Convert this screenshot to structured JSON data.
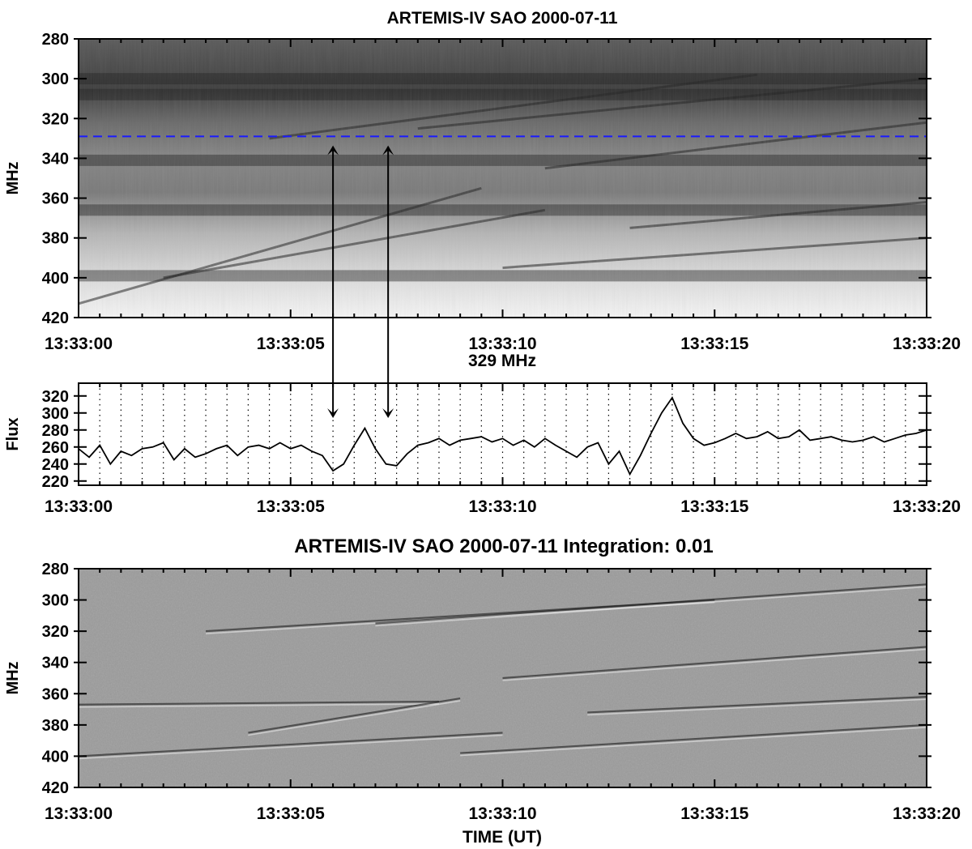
{
  "chart_data": [
    {
      "type": "heatmap",
      "title": "ARTEMIS-IV  SAO 2000-07-11",
      "xlabel": "",
      "ylabel": "MHz",
      "x_tick_labels": [
        "13:33:00",
        "13:33:05",
        "13:33:10",
        "13:33:15",
        "13:33:20"
      ],
      "y_tick_labels": [
        "280",
        "300",
        "320",
        "340",
        "360",
        "380",
        "400",
        "420"
      ],
      "x_range_seconds": [
        0,
        20
      ],
      "ylim": [
        280,
        420
      ],
      "y_inverted": true,
      "colormap": "grayscale, dark = high intensity",
      "reference_line": {
        "frequency_mhz": 329,
        "color": "#1a1aff",
        "style": "dashed"
      },
      "dark_bands_mhz": [
        300,
        308,
        341,
        366,
        399
      ],
      "drifting_features": [
        {
          "t_start": 0.0,
          "f_start": 413,
          "t_end": 9.5,
          "f_end": 355
        },
        {
          "t_start": 2.0,
          "f_start": 400,
          "t_end": 11.0,
          "f_end": 366
        },
        {
          "t_start": 4.5,
          "f_start": 330,
          "t_end": 16.0,
          "f_end": 298
        },
        {
          "t_start": 8.0,
          "f_start": 325,
          "t_end": 20.0,
          "f_end": 300
        },
        {
          "t_start": 11.0,
          "f_start": 345,
          "t_end": 20.0,
          "f_end": 322
        },
        {
          "t_start": 13.0,
          "f_start": 375,
          "t_end": 20.0,
          "f_end": 362
        },
        {
          "t_start": 10.0,
          "f_start": 395,
          "t_end": 20.0,
          "f_end": 380
        }
      ]
    },
    {
      "type": "line",
      "title": "329 MHz",
      "xlabel": "",
      "ylabel": "Flux",
      "x_tick_labels": [
        "13:33:00",
        "13:33:05",
        "13:33:10",
        "13:33:15",
        "13:33:20"
      ],
      "y_tick_labels": [
        "220",
        "240",
        "260",
        "280",
        "300",
        "320"
      ],
      "x_range_seconds": [
        0,
        20
      ],
      "ylim": [
        215,
        335
      ],
      "grid": "vertical dotted lines every 0.5 s",
      "series": [
        {
          "x": [
            0,
            0.25,
            0.5,
            0.75,
            1,
            1.25,
            1.5,
            1.75,
            2,
            2.25,
            2.5,
            2.75,
            3,
            3.25,
            3.5,
            3.75,
            4,
            4.25,
            4.5,
            4.75,
            5,
            5.25,
            5.5,
            5.75,
            6,
            6.25,
            6.5,
            6.75,
            7,
            7.25,
            7.5,
            7.75,
            8,
            8.25,
            8.5,
            8.75,
            9,
            9.25,
            9.5,
            9.75,
            10,
            10.25,
            10.5,
            10.75,
            11,
            11.25,
            11.5,
            11.75,
            12,
            12.25,
            12.5,
            12.75,
            13,
            13.25,
            13.5,
            13.75,
            14,
            14.25,
            14.5,
            14.75,
            15,
            15.25,
            15.5,
            15.75,
            16,
            16.25,
            16.5,
            16.75,
            17,
            17.25,
            17.5,
            17.75,
            18,
            18.25,
            18.5,
            18.75,
            19,
            19.25,
            19.5,
            19.75,
            20
          ],
          "values": [
            258,
            248,
            262,
            240,
            255,
            250,
            258,
            260,
            265,
            245,
            258,
            248,
            252,
            258,
            262,
            250,
            260,
            262,
            258,
            265,
            258,
            262,
            255,
            250,
            232,
            240,
            262,
            282,
            258,
            240,
            238,
            252,
            262,
            265,
            270,
            262,
            268,
            270,
            272,
            266,
            270,
            262,
            268,
            260,
            270,
            262,
            255,
            248,
            260,
            265,
            240,
            255,
            228,
            250,
            276,
            300,
            318,
            288,
            270,
            262,
            265,
            270,
            276,
            270,
            272,
            278,
            270,
            272,
            280,
            268,
            270,
            272,
            268,
            266,
            268,
            272,
            266,
            270,
            274,
            276,
            280
          ]
        }
      ],
      "arrows_time_seconds": [
        6.0,
        7.3
      ]
    },
    {
      "type": "heatmap",
      "title": "ARTEMIS-IV  SAO 2000-07-11   Integration: 0.01",
      "xlabel": "TIME (UT)",
      "ylabel": "MHz",
      "x_tick_labels": [
        "13:33:00",
        "13:33:05",
        "13:33:10",
        "13:33:15",
        "13:33:20"
      ],
      "y_tick_labels": [
        "280",
        "300",
        "320",
        "340",
        "360",
        "380",
        "400",
        "420"
      ],
      "x_range_seconds": [
        0,
        20
      ],
      "ylim": [
        280,
        420
      ],
      "y_inverted": true,
      "colormap": "grayscale, high-pass filtered",
      "drifting_features": [
        {
          "t_start": 0.0,
          "f_start": 367,
          "t_end": 8.5,
          "f_end": 365
        },
        {
          "t_start": 4.0,
          "f_start": 385,
          "t_end": 9.0,
          "f_end": 363
        },
        {
          "t_start": 3.0,
          "f_start": 320,
          "t_end": 15.0,
          "f_end": 300
        },
        {
          "t_start": 7.0,
          "f_start": 315,
          "t_end": 20.0,
          "f_end": 290
        },
        {
          "t_start": 10.0,
          "f_start": 350,
          "t_end": 20.0,
          "f_end": 330
        },
        {
          "t_start": 0.0,
          "f_start": 400,
          "t_end": 10.0,
          "f_end": 385
        },
        {
          "t_start": 12.0,
          "f_start": 372,
          "t_end": 20.0,
          "f_end": 362
        },
        {
          "t_start": 9.0,
          "f_start": 398,
          "t_end": 20.0,
          "f_end": 380
        }
      ]
    }
  ]
}
